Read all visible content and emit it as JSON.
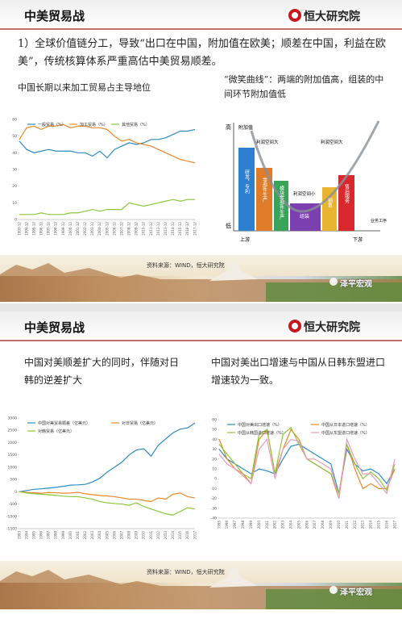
{
  "slides": [
    {
      "header": {
        "title": "中美贸易战",
        "logo": "恒大研究院"
      },
      "text": "1）全球价值链分工，导致“出口在中国，附加值在欧美；顺差在中国，利益在欧美”，传统核算体系严重高估中美贸易顺差。",
      "source": "资料来源：WIND，恒大研究院",
      "watermark": "泽平宏观"
    },
    {
      "header": {
        "title": "中美贸易战",
        "logo": "恒大研究院"
      },
      "source": "资料来源：WIND，恒大研究院",
      "watermark": "泽平宏观"
    }
  ],
  "smile_curve": {
    "title": "“微笑曲线”：两端的附加值高，组装的中间环节附加值低",
    "y_high": "高",
    "y_low": "低",
    "y_label": "附加值",
    "x_start": "上游",
    "x_end": "下游",
    "x_label": "业务工序",
    "curve_labels": [
      "利润空间大",
      "利润空间大",
      "利润空间小"
    ],
    "stages": [
      "研发，专利",
      "零部件生产",
      "模块零部件生产",
      "组装",
      "销售",
      "售后服务"
    ]
  },
  "chart_data": [
    {
      "type": "line",
      "title": "中国长期以来加工贸易占主导地位",
      "categories": [
        "1993-12",
        "1994-12",
        "1995-12",
        "1996-12",
        "1997-12",
        "1998-12",
        "1999-12",
        "2000-12",
        "2001-12",
        "2002-12",
        "2003-12",
        "2004-12",
        "2005-12",
        "2006-12",
        "2007-12",
        "2008-12",
        "2009-12",
        "2010-12",
        "2011-12",
        "2012-12",
        "2013-12",
        "2014-12",
        "2015-12",
        "2016-12",
        "2017-12"
      ],
      "series": [
        {
          "name": "一般贸易（%）",
          "color": "#2e8bc0",
          "values": [
            47,
            42,
            40,
            41,
            42,
            41,
            41,
            41,
            40,
            40,
            38,
            41,
            37,
            42,
            44,
            46,
            45,
            46,
            48,
            48,
            49,
            51,
            53,
            53,
            54
          ]
        },
        {
          "name": "加工贸易（%）",
          "color": "#e8892b",
          "values": [
            48,
            55,
            56,
            54,
            56,
            56,
            57,
            55,
            56,
            56,
            55,
            55,
            54,
            50,
            47,
            48,
            46,
            45,
            44,
            42,
            40,
            38,
            36,
            35,
            34
          ]
        },
        {
          "name": "其他贸易（%）",
          "color": "#8cc63f",
          "values": [
            3,
            3,
            3,
            4,
            3,
            3,
            3,
            4,
            4,
            5,
            6,
            5,
            6,
            6,
            6,
            10,
            9,
            8,
            9,
            10,
            11,
            12,
            11,
            12,
            12
          ]
        }
      ],
      "ylim": [
        0,
        60
      ],
      "yticks": [
        0,
        10,
        20,
        30,
        40,
        50,
        60
      ],
      "grid": false
    },
    {
      "type": "line",
      "title": "中国对美顺差扩大的同时，伴随对日韩的逆差扩大",
      "categories": [
        "1993",
        "1994",
        "1995",
        "1996",
        "1997",
        "1998",
        "1999",
        "2000",
        "2001",
        "2002",
        "2003",
        "2004",
        "2005",
        "2006",
        "2007",
        "2008",
        "2009",
        "2010",
        "2011",
        "2012",
        "2013",
        "2014",
        "2015",
        "2016",
        "2017"
      ],
      "series": [
        {
          "name": "中国对美贸易顺差（亿美元）",
          "color": "#2e8bc0",
          "values": [
            0,
            50,
            100,
            120,
            150,
            180,
            220,
            270,
            280,
            300,
            400,
            550,
            800,
            1000,
            1200,
            1500,
            1700,
            1750,
            1450,
            1900,
            2150,
            2400,
            2550,
            2600,
            2800
          ]
        },
        {
          "name": "对日贸易（亿美元）",
          "color": "#e8892b",
          "values": [
            0,
            -20,
            -40,
            -60,
            -30,
            -40,
            -60,
            -50,
            -20,
            -80,
            -120,
            -150,
            -170,
            -200,
            -250,
            -300,
            -300,
            -350,
            -400,
            -250,
            -300,
            -100,
            -50,
            -200,
            -250
          ]
        },
        {
          "name": "对韩贸易（亿美元）",
          "color": "#8cc63f",
          "values": [
            0,
            -50,
            -80,
            -100,
            -120,
            -150,
            -180,
            -200,
            -200,
            -250,
            -300,
            -400,
            -450,
            -480,
            -500,
            -550,
            -450,
            -600,
            -700,
            -800,
            -900,
            -950,
            -800,
            -650,
            -700
          ]
        }
      ],
      "ylim": [
        -1500,
        3000
      ],
      "yticks": [
        -1500,
        -1000,
        -500,
        0,
        500,
        1000,
        1500,
        2000,
        2500,
        3000
      ],
      "grid": false
    },
    {
      "type": "line",
      "title": "中国对美出口增速与中国从日韩东盟进口增速较为一致。",
      "categories": [
        "1995",
        "1996",
        "1997",
        "1998",
        "1999",
        "2000",
        "2001",
        "2002",
        "2003",
        "2004",
        "2005",
        "2006",
        "2007",
        "2008",
        "2009",
        "2010",
        "2011",
        "2012",
        "2013",
        "2014",
        "2015",
        "2016",
        "2017"
      ],
      "series": [
        {
          "name": "中国对美出口增速（%）",
          "color": "#2e8bc0",
          "values": [
            30,
            20,
            15,
            10,
            5,
            10,
            8,
            5,
            20,
            33,
            35,
            30,
            25,
            20,
            15,
            -15,
            30,
            15,
            8,
            10,
            5,
            -5,
            10
          ]
        },
        {
          "name": "中国从日本进口增速（%）",
          "color": "#e8892b",
          "values": [
            40,
            20,
            10,
            5,
            -5,
            40,
            50,
            5,
            30,
            50,
            40,
            20,
            15,
            10,
            5,
            -20,
            35,
            10,
            -10,
            -5,
            -10,
            -10,
            10
          ]
        },
        {
          "name": "中国从韩国进口增速（%）",
          "color": "#8cc63f",
          "values": [
            35,
            25,
            15,
            5,
            0,
            45,
            50,
            5,
            45,
            52,
            35,
            20,
            15,
            10,
            5,
            -15,
            35,
            15,
            0,
            7,
            0,
            -12,
            15
          ]
        },
        {
          "name": "中国从东盟进口增速（%）",
          "color": "#e79bc0",
          "values": [
            25,
            15,
            10,
            3,
            -5,
            30,
            40,
            0,
            30,
            40,
            38,
            20,
            20,
            15,
            10,
            -20,
            40,
            20,
            5,
            5,
            -5,
            -15,
            20
          ]
        }
      ],
      "ylim": [
        -40,
        60
      ],
      "yticks": [
        -40,
        -30,
        -20,
        -10,
        0,
        10,
        20,
        30,
        40,
        50,
        60
      ],
      "grid": false
    }
  ]
}
